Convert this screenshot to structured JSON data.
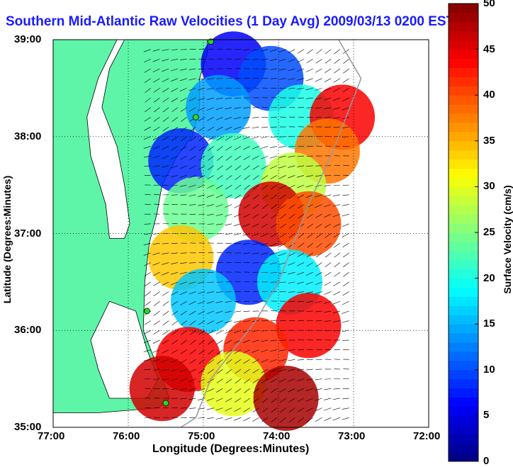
{
  "chart_data": {
    "type": "heatmap",
    "title": "Southern Mid-Atlantic Raw Velocities (1 Day Avg) 2009/03/13 0200 EST",
    "xlabel": "Longitude (Degrees:Minutes)",
    "ylabel": "Latitude (Degrees:Minutes)",
    "x_ticks": [
      "77:00",
      "76:00",
      "75:00",
      "74:00",
      "73:00",
      "72:00"
    ],
    "y_ticks": [
      "39:00",
      "38:00",
      "37:00",
      "36:00",
      "35:00"
    ],
    "xlim": [
      -77,
      -72
    ],
    "ylim": [
      35,
      39
    ],
    "grid": true,
    "colorbar": {
      "label": "Surface Velocity (cm/s)",
      "range": [
        0,
        50
      ],
      "ticks": [
        "0",
        "5",
        "10",
        "15",
        "20",
        "25",
        "30",
        "35",
        "40",
        "45",
        "50"
      ]
    },
    "velocity_regions": [
      {
        "lon": -74.6,
        "lat": 38.75,
        "speed": 6
      },
      {
        "lon": -74.1,
        "lat": 38.6,
        "speed": 10
      },
      {
        "lon": -74.8,
        "lat": 38.3,
        "speed": 14
      },
      {
        "lon": -73.7,
        "lat": 38.2,
        "speed": 20
      },
      {
        "lon": -73.15,
        "lat": 38.2,
        "speed": 44
      },
      {
        "lon": -73.35,
        "lat": 37.85,
        "speed": 38
      },
      {
        "lon": -75.3,
        "lat": 37.75,
        "speed": 8
      },
      {
        "lon": -74.6,
        "lat": 37.7,
        "speed": 22
      },
      {
        "lon": -73.8,
        "lat": 37.5,
        "speed": 28
      },
      {
        "lon": -74.1,
        "lat": 37.2,
        "speed": 46
      },
      {
        "lon": -73.6,
        "lat": 37.1,
        "speed": 40
      },
      {
        "lon": -75.1,
        "lat": 37.25,
        "speed": 24
      },
      {
        "lon": -75.3,
        "lat": 36.75,
        "speed": 34
      },
      {
        "lon": -74.4,
        "lat": 36.6,
        "speed": 8
      },
      {
        "lon": -73.85,
        "lat": 36.5,
        "speed": 18
      },
      {
        "lon": -75.0,
        "lat": 36.3,
        "speed": 16
      },
      {
        "lon": -73.6,
        "lat": 36.05,
        "speed": 44
      },
      {
        "lon": -74.3,
        "lat": 35.8,
        "speed": 42
      },
      {
        "lon": -75.2,
        "lat": 35.7,
        "speed": 44
      },
      {
        "lon": -74.6,
        "lat": 35.45,
        "speed": 30
      },
      {
        "lon": -75.55,
        "lat": 35.4,
        "speed": 46
      },
      {
        "lon": -73.9,
        "lat": 35.3,
        "speed": 48
      }
    ],
    "station_markers": [
      {
        "lon": -74.9,
        "lat": 38.98
      },
      {
        "lon": -75.1,
        "lat": 38.2
      },
      {
        "lon": -75.75,
        "lat": 36.2
      },
      {
        "lon": -75.5,
        "lat": 35.25
      }
    ]
  },
  "colors": {
    "land": "#5ef5a8",
    "title": "#1a1aff",
    "marker": "#22dd22"
  }
}
